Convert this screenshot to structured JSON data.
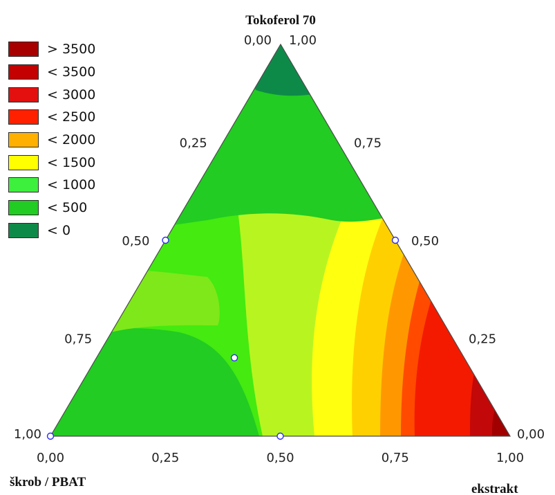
{
  "chart_data": {
    "type": "ternary-contour",
    "title": "",
    "vertex_labels": {
      "top": "Tokoferol 70",
      "bottom_left": "škrob / PBAT",
      "bottom_right": "ekstrakt"
    },
    "corner_values": {
      "top_left": "0,00",
      "top_right": "1,00",
      "bottom_left": "1,00",
      "bottom_right": "0,00"
    },
    "ticks": {
      "left_edge": [
        "0,25",
        "0,50",
        "0,75"
      ],
      "right_edge": [
        "0,75",
        "0,50",
        "0,25"
      ],
      "bottom_edge": [
        "0,00",
        "0,25",
        "0,50",
        "0,75",
        "1,00"
      ]
    },
    "legend": [
      {
        "label": "> 3500",
        "color": "#a80000"
      },
      {
        "label": "< 3500",
        "color": "#c40000"
      },
      {
        "label": "< 3000",
        "color": "#e41010"
      },
      {
        "label": "< 2500",
        "color": "#ff2000"
      },
      {
        "label": "< 2000",
        "color": "#ffb000"
      },
      {
        "label": "< 1500",
        "color": "#ffff00"
      },
      {
        "label": "< 1000",
        "color": "#3df03d"
      },
      {
        "label": "< 500",
        "color": "#22cc22"
      },
      {
        "label": "< 0",
        "color": "#0e8a48"
      }
    ],
    "design_points": [
      {
        "tokoferol": 0.5,
        "ekstrakt": 0.0
      },
      {
        "tokoferol": 0.5,
        "ekstrakt": 0.5
      },
      {
        "tokoferol": 0.0,
        "ekstrakt": 0.0
      },
      {
        "tokoferol": 0.0,
        "ekstrakt": 0.5
      },
      {
        "tokoferol": 0.2,
        "ekstrakt": 0.3
      }
    ]
  }
}
